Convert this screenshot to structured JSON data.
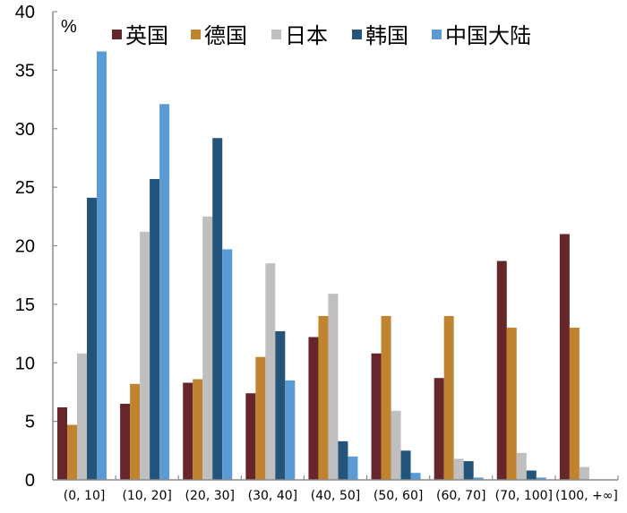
{
  "chart_data": {
    "type": "bar",
    "title": "",
    "unit_label": "%",
    "xlabel": "",
    "ylabel": "%",
    "ylim": [
      0,
      40
    ],
    "yticks": [
      0,
      5,
      10,
      15,
      20,
      25,
      30,
      35,
      40
    ],
    "grid": false,
    "legend_position": "top",
    "categories": [
      "(0, 10]",
      "(10, 20]",
      "(20, 30]",
      "(30, 40]",
      "(40, 50]",
      "(50, 60]",
      "(60, 70]",
      "(70, 100]",
      "(100, +∞]"
    ],
    "series": [
      {
        "name": "英国",
        "color": "#67262A",
        "values": [
          6.2,
          6.5,
          8.3,
          7.4,
          12.2,
          10.8,
          8.7,
          18.7,
          21.0
        ]
      },
      {
        "name": "德国",
        "color": "#C0832F",
        "values": [
          4.7,
          8.2,
          8.6,
          10.5,
          14.0,
          14.0,
          14.0,
          13.0,
          13.0
        ]
      },
      {
        "name": "日本",
        "color": "#BFBFBF",
        "values": [
          10.8,
          21.2,
          22.5,
          18.5,
          15.9,
          5.9,
          1.8,
          2.3,
          1.1
        ]
      },
      {
        "name": "韩国",
        "color": "#245479",
        "values": [
          24.1,
          25.7,
          29.2,
          12.7,
          3.3,
          2.5,
          1.6,
          0.8,
          0.0
        ]
      },
      {
        "name": "中国大陆",
        "color": "#5B9BD5",
        "values": [
          36.6,
          32.1,
          19.7,
          8.5,
          2.0,
          0.6,
          0.2,
          0.2,
          0.0
        ]
      }
    ]
  }
}
